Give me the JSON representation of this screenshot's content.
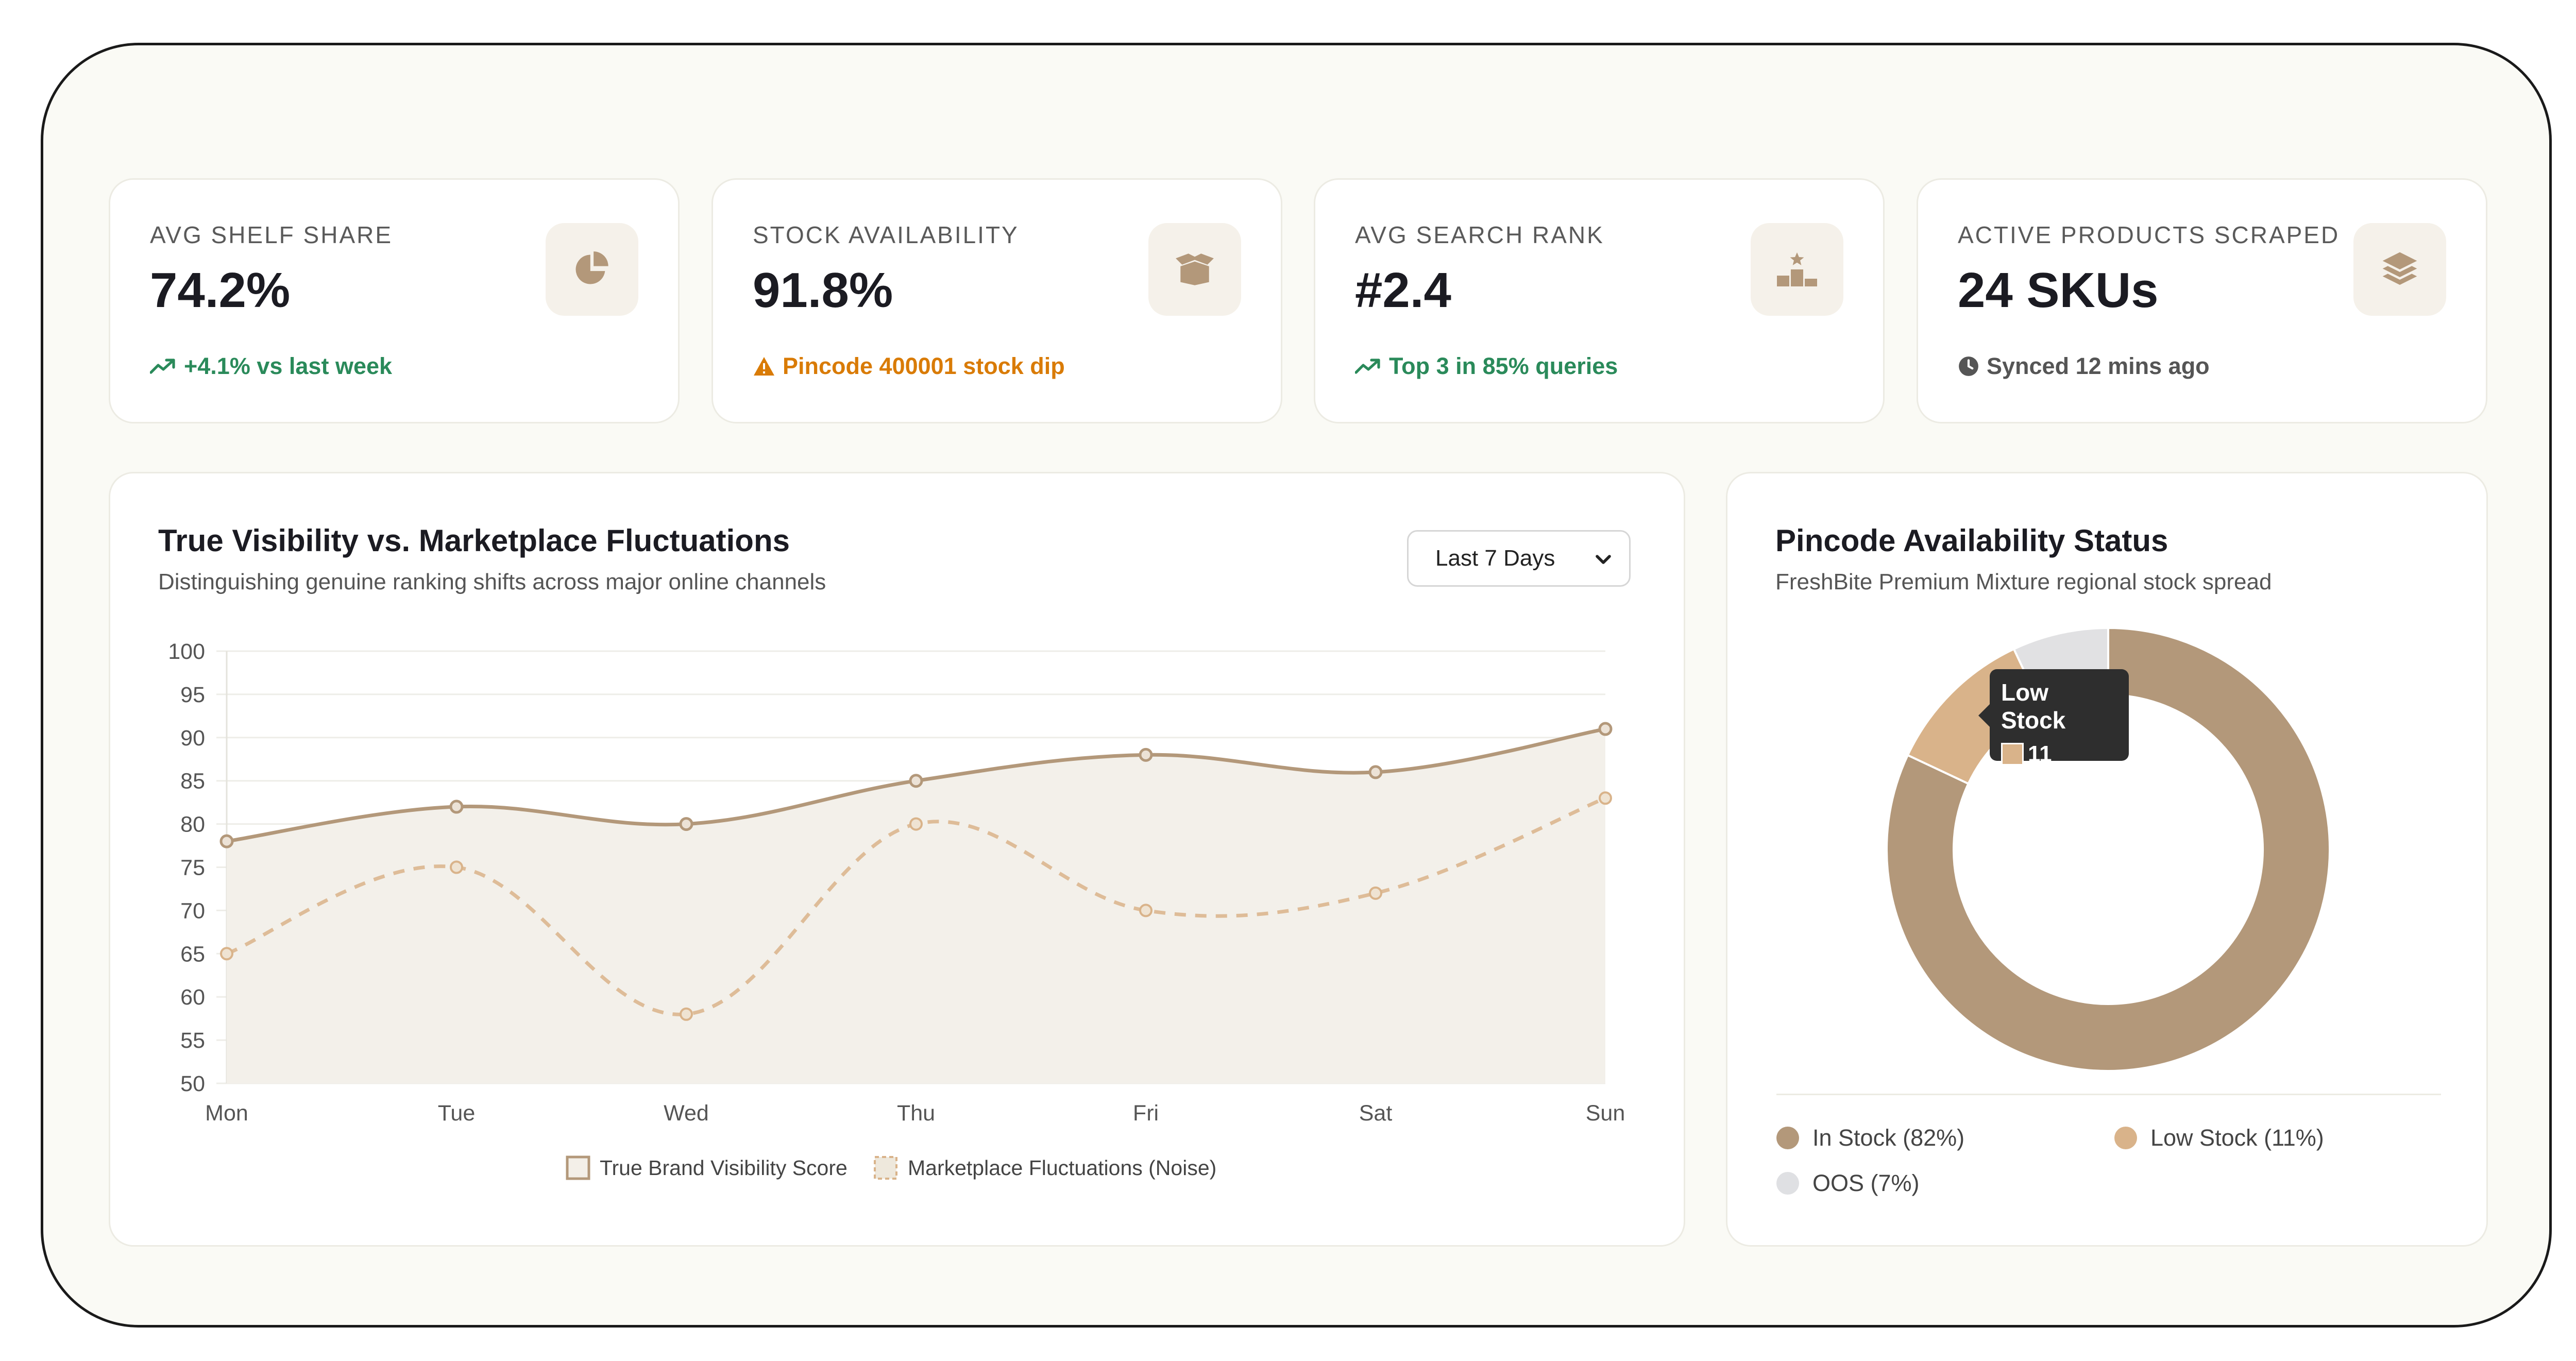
{
  "kpis": [
    {
      "label": "AVG SHELF SHARE",
      "value": "74.2%",
      "sub": "+4.1% vs last week",
      "sub_icon": "trend-up-icon",
      "icon": "pie-chart-icon"
    },
    {
      "label": "STOCK AVAILABILITY",
      "value": "91.8%",
      "sub": "Pincode 400001 stock dip",
      "sub_icon": "warning-icon",
      "icon": "box-icon"
    },
    {
      "label": "AVG SEARCH RANK",
      "value": "#2.4",
      "sub": "Top 3 in 85% queries",
      "sub_icon": "trend-up-icon",
      "icon": "podium-icon"
    },
    {
      "label": "ACTIVE PRODUCTS SCRAPED",
      "value": "24 SKUs",
      "sub": "Synced 12 mins ago",
      "sub_icon": "clock-icon",
      "icon": "layers-icon"
    }
  ],
  "colors": {
    "accent": "#b3987a",
    "accent_light": "#d9b38a",
    "oos": "#e1e1e3",
    "green": "#2a8a5a",
    "orange": "#d97b06"
  },
  "line_chart": {
    "title": "True Visibility vs. Marketplace Fluctuations",
    "subtitle": "Distinguishing genuine ranking shifts across major online channels",
    "range_select": "Last 7 Days"
  },
  "donut_chart": {
    "title": "Pincode Availability Status",
    "subtitle": "FreshBite Premium Mixture regional stock spread",
    "tooltip_title": "Low Stock",
    "tooltip_value": "11",
    "legend": [
      {
        "label": "In Stock (82%)"
      },
      {
        "label": "Low Stock (11%)"
      },
      {
        "label": "OOS (7%)"
      }
    ]
  },
  "chart_data": [
    {
      "type": "line",
      "categories": [
        "Mon",
        "Tue",
        "Wed",
        "Thu",
        "Fri",
        "Sat",
        "Sun"
      ],
      "series": [
        {
          "name": "True Brand Visibility Score",
          "values": [
            78,
            82,
            80,
            85,
            88,
            86,
            91
          ]
        },
        {
          "name": "Marketplace Fluctuations (Noise)",
          "values": [
            65,
            75,
            58,
            80,
            70,
            72,
            83
          ]
        }
      ],
      "ylim": [
        50,
        100
      ],
      "yticks": [
        100,
        95,
        90,
        85,
        80,
        75,
        70,
        65,
        60,
        55,
        50
      ],
      "grid": true,
      "legend_position": "bottom"
    },
    {
      "type": "pie",
      "categories": [
        "In Stock",
        "Low Stock",
        "OOS"
      ],
      "values": [
        82,
        11,
        7
      ]
    }
  ]
}
